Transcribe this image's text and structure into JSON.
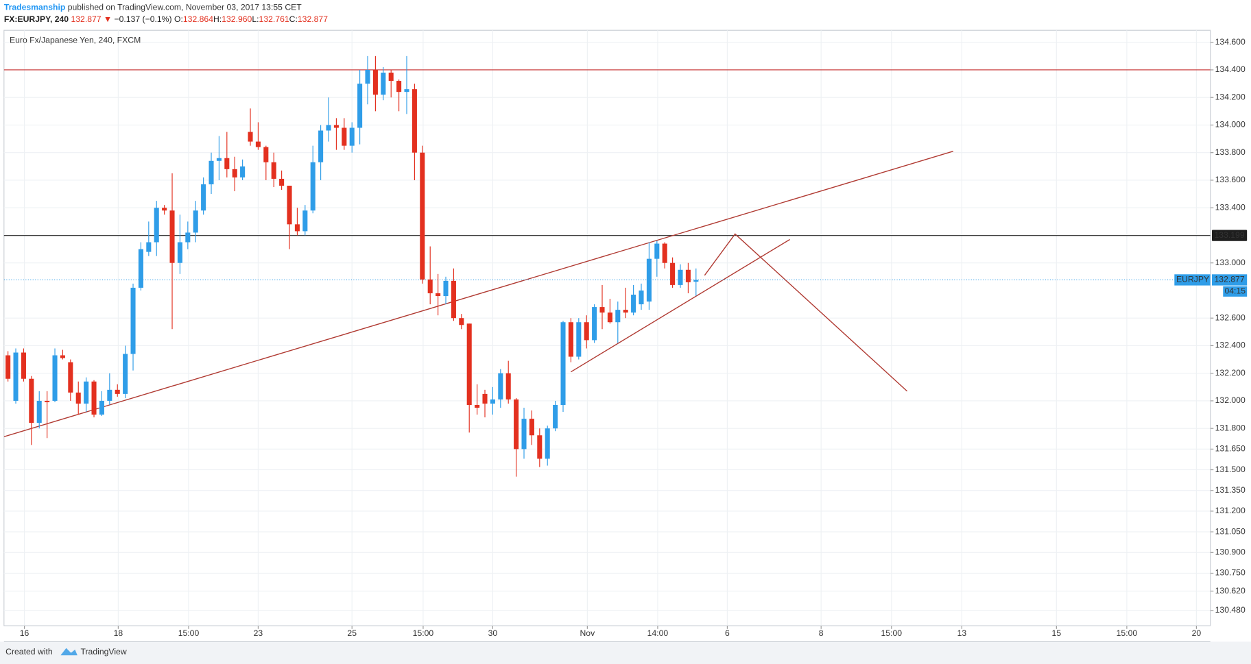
{
  "chart_data": {
    "type": "candlestick",
    "publisher": "Tradesmanship",
    "published_text": "published on TradingView.com, November 03, 2017 13:55 CET",
    "symbol_header": "FX:EURJPY, 240",
    "last_price": 132.877,
    "change_arrow": "▼",
    "change_text": "−0.137 (−0.1%)",
    "ohlc_header": [
      {
        "key": "O:",
        "value": "132.864"
      },
      {
        "key": "H:",
        "value": "132.960"
      },
      {
        "key": "L:",
        "value": "132.761"
      },
      {
        "key": "C:",
        "value": "132.877"
      }
    ],
    "title": "Euro Fx/Japanese Yen, 240, FXCM",
    "symbol_badge": "EURJPY",
    "countdown": "04:15",
    "up_color": "#2f9de8",
    "down_color": "#e3301f",
    "grid": true,
    "series": [
      {
        "open": [
          132.33,
          132.0,
          132.35,
          132.16,
          131.84,
          132.0,
          132.0,
          132.33,
          132.28,
          132.06,
          131.98,
          132.14,
          131.9,
          132.0,
          132.08,
          132.05,
          132.34,
          132.82,
          133.08,
          133.15,
          133.4,
          133.38,
          133.0,
          133.15,
          133.22,
          133.38,
          133.57,
          133.74,
          133.76,
          133.68,
          133.62,
          133.95,
          133.88,
          133.84,
          133.73,
          133.61,
          133.56,
          133.28,
          133.23,
          133.38,
          133.73,
          133.96,
          134.0,
          133.98,
          133.85,
          133.98,
          134.3,
          134.4,
          134.22,
          134.38,
          134.32,
          134.24,
          134.26,
          133.8,
          132.88,
          132.78,
          132.76,
          132.87,
          132.6,
          132.56,
          131.97,
          132.05,
          131.98,
          132.01,
          132.2,
          132.01,
          131.65,
          131.87,
          131.75,
          131.58,
          131.8,
          131.97,
          132.57,
          132.32,
          132.57,
          132.44,
          132.68,
          132.64,
          132.57,
          132.66,
          132.64,
          132.7,
          132.72,
          133.03,
          133.14,
          133.0,
          132.84,
          132.95,
          132.864
        ],
        "high": [
          132.36,
          132.38,
          132.38,
          132.18,
          132.07,
          132.07,
          132.38,
          132.37,
          132.3,
          132.14,
          132.17,
          132.15,
          132.07,
          132.2,
          132.12,
          132.4,
          132.85,
          133.15,
          133.3,
          133.45,
          133.42,
          133.65,
          133.35,
          133.3,
          133.45,
          133.62,
          133.8,
          133.92,
          133.95,
          133.77,
          133.75,
          134.12,
          134.02,
          133.85,
          133.8,
          133.67,
          133.56,
          133.4,
          133.42,
          133.85,
          134.0,
          134.2,
          134.05,
          134.05,
          134.02,
          134.4,
          134.5,
          134.5,
          134.42,
          134.4,
          134.33,
          134.5,
          134.3,
          133.85,
          133.12,
          132.92,
          132.9,
          132.96,
          132.63,
          132.56,
          132.12,
          132.08,
          132.1,
          132.23,
          132.29,
          132.02,
          131.95,
          131.93,
          131.8,
          131.82,
          132.0,
          132.58,
          132.6,
          132.6,
          132.62,
          132.7,
          132.84,
          132.74,
          132.72,
          132.82,
          132.84,
          132.85,
          133.15,
          133.16,
          133.15,
          133.04,
          132.99,
          133.0,
          132.96
        ],
        "low": [
          132.14,
          131.98,
          132.14,
          131.68,
          131.8,
          131.73,
          131.99,
          132.3,
          132.0,
          131.9,
          131.92,
          131.88,
          131.89,
          131.97,
          132.03,
          132.02,
          132.22,
          132.8,
          133.05,
          133.05,
          133.35,
          132.52,
          132.92,
          133.1,
          133.15,
          133.35,
          133.5,
          133.6,
          133.62,
          133.52,
          133.6,
          133.85,
          133.82,
          133.6,
          133.55,
          133.53,
          133.1,
          133.2,
          133.2,
          133.36,
          133.6,
          133.88,
          133.82,
          133.82,
          133.8,
          133.86,
          134.15,
          134.1,
          134.18,
          134.2,
          134.1,
          134.08,
          133.6,
          132.85,
          132.7,
          132.62,
          132.7,
          132.58,
          132.52,
          131.77,
          131.9,
          131.88,
          131.9,
          131.95,
          131.98,
          131.45,
          131.58,
          131.68,
          131.52,
          131.53,
          131.78,
          131.92,
          132.28,
          132.3,
          132.38,
          132.42,
          132.52,
          132.56,
          132.42,
          132.6,
          132.62,
          132.66,
          132.66,
          132.9,
          132.96,
          132.82,
          132.82,
          132.78,
          132.761
        ],
        "close": [
          132.16,
          132.35,
          132.16,
          131.84,
          132.0,
          131.99,
          132.33,
          132.31,
          132.06,
          131.98,
          132.14,
          131.9,
          132.0,
          132.08,
          132.05,
          132.34,
          132.82,
          133.1,
          133.15,
          133.4,
          133.38,
          133.0,
          133.15,
          133.22,
          133.38,
          133.57,
          133.74,
          133.76,
          133.68,
          133.62,
          133.7,
          133.88,
          133.84,
          133.73,
          133.61,
          133.56,
          133.28,
          133.23,
          133.38,
          133.73,
          133.96,
          134.0,
          133.98,
          133.85,
          133.98,
          134.3,
          134.4,
          134.22,
          134.38,
          134.32,
          134.24,
          134.26,
          133.8,
          132.88,
          132.78,
          132.76,
          132.87,
          132.6,
          132.55,
          131.97,
          131.95,
          131.98,
          132.01,
          132.2,
          132.01,
          131.65,
          131.87,
          131.75,
          131.58,
          131.8,
          131.97,
          132.57,
          132.32,
          132.57,
          132.44,
          132.68,
          132.64,
          132.57,
          132.66,
          132.64,
          132.77,
          132.8,
          133.03,
          133.14,
          133.0,
          132.84,
          132.95,
          132.86,
          132.877
        ]
      }
    ],
    "hlines": [
      {
        "value": 134.4,
        "color": "#c62828"
      },
      {
        "value": 133.199,
        "color": "#222222"
      }
    ],
    "trendlines": [
      {
        "x": [
          -0.5,
          120.9
        ],
        "y": [
          131.74,
          133.81
        ],
        "color": "#b03a32"
      },
      {
        "x": [
          72.0,
          100.0
        ],
        "y": [
          132.21,
          133.17
        ],
        "color": "#b03a32"
      },
      {
        "x": [
          89.1,
          93.0,
          115.0
        ],
        "y": [
          132.91,
          133.21,
          132.07
        ],
        "color": "#b03a32"
      }
    ],
    "xlim": [
      -0.51,
      153.78
    ],
    "ylim": [
      130.369,
      134.687
    ],
    "xticks": [
      {
        "value": 2.1,
        "label": "16"
      },
      {
        "value": 14.1,
        "label": "18"
      },
      {
        "value": 23.1,
        "label": "15:00"
      },
      {
        "value": 32.0,
        "label": "23"
      },
      {
        "value": 44.0,
        "label": "25"
      },
      {
        "value": 53.1,
        "label": "15:00"
      },
      {
        "value": 62.0,
        "label": "30"
      },
      {
        "value": 74.1,
        "label": "Nov"
      },
      {
        "value": 83.1,
        "label": "14:00"
      },
      {
        "value": 92.0,
        "label": "6"
      },
      {
        "value": 104.0,
        "label": "8"
      },
      {
        "value": 113.0,
        "label": "15:00"
      },
      {
        "value": 122.0,
        "label": "13"
      },
      {
        "value": 134.1,
        "label": "15"
      },
      {
        "value": 143.1,
        "label": "15:00"
      },
      {
        "value": 152.0,
        "label": "20"
      }
    ],
    "yticks": [
      {
        "value": 134.6,
        "label": "134.600"
      },
      {
        "value": 134.4,
        "label": "134.400"
      },
      {
        "value": 134.2,
        "label": "134.200"
      },
      {
        "value": 134.0,
        "label": "134.000"
      },
      {
        "value": 133.8,
        "label": "133.800"
      },
      {
        "value": 133.6,
        "label": "133.600"
      },
      {
        "value": 133.4,
        "label": "133.400"
      },
      {
        "value": 133.0,
        "label": "133.000"
      },
      {
        "value": 132.6,
        "label": "132.600"
      },
      {
        "value": 132.4,
        "label": "132.400"
      },
      {
        "value": 132.2,
        "label": "132.200"
      },
      {
        "value": 132.0,
        "label": "132.000"
      },
      {
        "value": 131.8,
        "label": "131.800"
      },
      {
        "value": 131.65,
        "label": "131.650"
      },
      {
        "value": 131.5,
        "label": "131.500"
      },
      {
        "value": 131.35,
        "label": "131.350"
      },
      {
        "value": 131.2,
        "label": "131.200"
      },
      {
        "value": 131.05,
        "label": "131.050"
      },
      {
        "value": 130.9,
        "label": "130.900"
      },
      {
        "value": 130.75,
        "label": "130.750"
      },
      {
        "value": 130.62,
        "label": "130.620"
      },
      {
        "value": 130.48,
        "label": "130.480"
      }
    ],
    "footer_text": "Created with",
    "footer_brand": "TradingView"
  }
}
